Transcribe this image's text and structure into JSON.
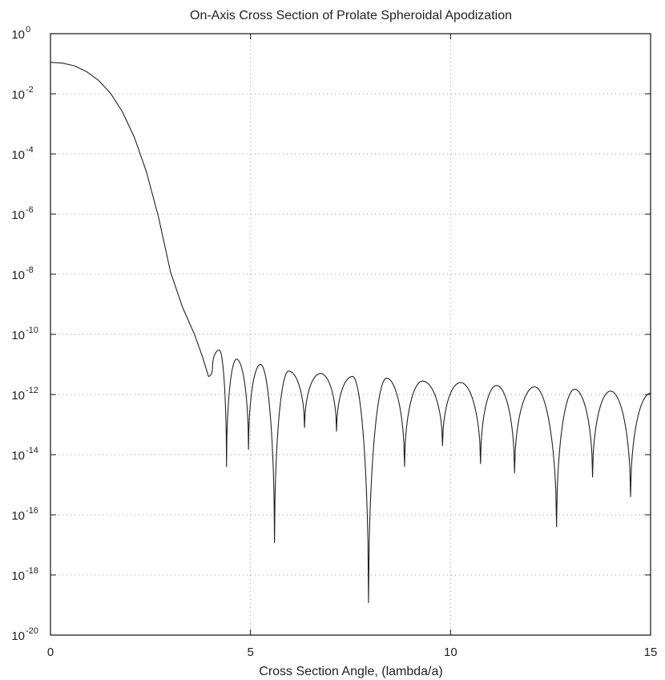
{
  "chart_data": {
    "type": "line",
    "title": "On-Axis Cross Section of Prolate Spheroidal Apodization",
    "xlabel": "Cross Section Angle, (lambda/a)",
    "ylabel": "",
    "xlim": [
      0,
      15
    ],
    "ylim_log10": [
      -20,
      0
    ],
    "yscale": "log",
    "grid": true,
    "x_ticks": [
      {
        "value": 0,
        "label": "0"
      },
      {
        "value": 5,
        "label": "5"
      },
      {
        "value": 10,
        "label": "10"
      },
      {
        "value": 15,
        "label": "15"
      }
    ],
    "y_ticks": [
      {
        "exp": 0,
        "base": "10",
        "sup": "0"
      },
      {
        "exp": -2,
        "base": "10",
        "sup": "-2"
      },
      {
        "exp": -4,
        "base": "10",
        "sup": "-4"
      },
      {
        "exp": -6,
        "base": "10",
        "sup": "-6"
      },
      {
        "exp": -8,
        "base": "10",
        "sup": "-8"
      },
      {
        "exp": -10,
        "base": "10",
        "sup": "-10"
      },
      {
        "exp": -12,
        "base": "10",
        "sup": "-12"
      },
      {
        "exp": -14,
        "base": "10",
        "sup": "-14"
      },
      {
        "exp": -16,
        "base": "10",
        "sup": "-16"
      },
      {
        "exp": -18,
        "base": "10",
        "sup": "-18"
      },
      {
        "exp": -20,
        "base": "10",
        "sup": "-20"
      }
    ],
    "series": [
      {
        "mainlobe": [
          [
            0.0,
            0.112
          ],
          [
            0.3,
            0.105
          ],
          [
            0.6,
            0.085
          ],
          [
            0.9,
            0.055
          ],
          [
            1.2,
            0.028
          ],
          [
            1.5,
            0.0105
          ],
          [
            1.8,
            0.0025
          ],
          [
            2.1,
            0.00035
          ],
          [
            2.4,
            2.5e-05
          ],
          [
            2.7,
            8e-07
          ],
          [
            3.0,
            1.2e-08
          ],
          [
            3.3,
            8e-10
          ],
          [
            3.6,
            1e-10
          ],
          [
            3.8,
            1.8e-11
          ],
          [
            3.95,
            4e-12
          ]
        ],
        "nulls": [
          {
            "x": 4.05,
            "y": 8e-12
          },
          {
            "x": 4.4,
            "y": 4e-15
          },
          {
            "x": 4.95,
            "y": 1.5e-14
          },
          {
            "x": 5.6,
            "y": 1.2e-17
          },
          {
            "x": 6.35,
            "y": 8e-14
          },
          {
            "x": 7.15,
            "y": 6e-14
          },
          {
            "x": 7.95,
            "y": 1.2e-19
          },
          {
            "x": 8.85,
            "y": 4e-15
          },
          {
            "x": 9.8,
            "y": 2e-14
          },
          {
            "x": 10.75,
            "y": 5e-15
          },
          {
            "x": 11.6,
            "y": 2.5e-15
          },
          {
            "x": 12.65,
            "y": 4e-17
          },
          {
            "x": 13.55,
            "y": 1.8e-15
          },
          {
            "x": 14.5,
            "y": 4e-16
          }
        ],
        "sidelobe_peaks": [
          {
            "x": 4.22,
            "y": 3e-11
          },
          {
            "x": 4.65,
            "y": 1.5e-11
          },
          {
            "x": 5.25,
            "y": 1e-11
          },
          {
            "x": 5.95,
            "y": 6e-12
          },
          {
            "x": 6.75,
            "y": 5e-12
          },
          {
            "x": 7.55,
            "y": 4e-12
          },
          {
            "x": 8.4,
            "y": 3.5e-12
          },
          {
            "x": 9.3,
            "y": 2.8e-12
          },
          {
            "x": 10.25,
            "y": 2.5e-12
          },
          {
            "x": 11.15,
            "y": 2e-12
          },
          {
            "x": 12.1,
            "y": 1.8e-12
          },
          {
            "x": 13.1,
            "y": 1.5e-12
          },
          {
            "x": 14.0,
            "y": 1.3e-12
          },
          {
            "x": 15.0,
            "y": 1.1e-12
          }
        ]
      }
    ]
  }
}
